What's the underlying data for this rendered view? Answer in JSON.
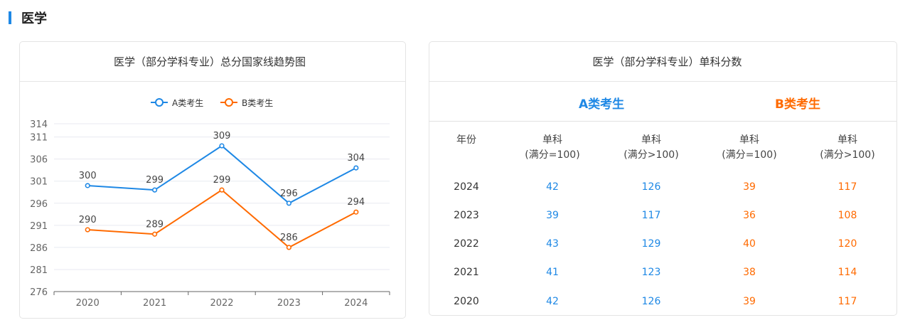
{
  "section": {
    "title": "医学"
  },
  "colors": {
    "accent": "#1e88e5",
    "series_a": "#1e88e5",
    "series_b": "#ff6a00"
  },
  "chart_data": {
    "type": "line",
    "title": "医学（部分学科专业）总分国家线趋势图",
    "categories": [
      "2020",
      "2021",
      "2022",
      "2023",
      "2024"
    ],
    "series": [
      {
        "name": "A类考生",
        "values": [
          300,
          299,
          309,
          296,
          304
        ],
        "color": "#1e88e5"
      },
      {
        "name": "B类考生",
        "values": [
          290,
          289,
          299,
          286,
          294
        ],
        "color": "#ff6a00"
      }
    ],
    "yticks": [
      "276",
      "281",
      "286",
      "291",
      "296",
      "301",
      "306",
      "311",
      "314"
    ],
    "ylim": [
      276,
      314
    ],
    "grid": true,
    "legend_position": "top"
  },
  "table": {
    "title": "医学（部分学科专业）单科分数",
    "groups": {
      "a": "A类考生",
      "b": "B类考生"
    },
    "headers": [
      {
        "line1": "年份",
        "line2": ""
      },
      {
        "line1": "单科",
        "line2": "(满分=100)"
      },
      {
        "line1": "单科",
        "line2": "(满分>100)"
      },
      {
        "line1": "单科",
        "line2": "(满分=100)"
      },
      {
        "line1": "单科",
        "line2": "(满分>100)"
      }
    ],
    "rows": [
      {
        "year": "2024",
        "a100": "42",
        "aover": "126",
        "b100": "39",
        "bover": "117"
      },
      {
        "year": "2023",
        "a100": "39",
        "aover": "117",
        "b100": "36",
        "bover": "108"
      },
      {
        "year": "2022",
        "a100": "43",
        "aover": "129",
        "b100": "40",
        "bover": "120"
      },
      {
        "year": "2021",
        "a100": "41",
        "aover": "123",
        "b100": "38",
        "bover": "114"
      },
      {
        "year": "2020",
        "a100": "42",
        "aover": "126",
        "b100": "39",
        "bover": "117"
      }
    ]
  }
}
